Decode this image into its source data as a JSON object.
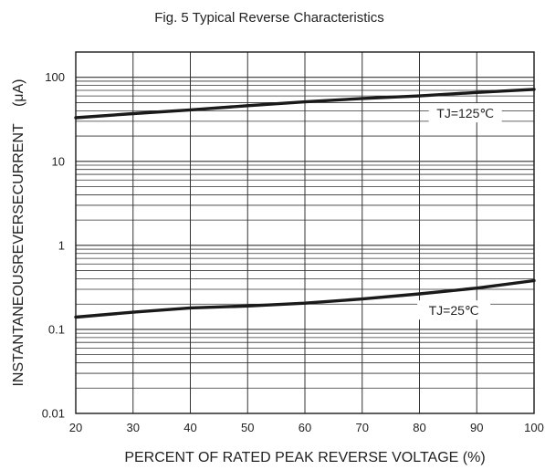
{
  "chart_data": {
    "type": "line",
    "title": "Fig. 5 Typical Reverse Characteristics",
    "xlabel": "PERCENT OF RATED PEAK REVERSE VOLTAGE (%)",
    "ylabel": "INSTANTANEOUSREVERSECURRENT",
    "ylabel_unit": "(μA)",
    "x_ticks": [
      "20",
      "30",
      "40",
      "50",
      "60",
      "70",
      "80",
      "90",
      "100"
    ],
    "y_ticks": [
      "0.01",
      "0.1",
      "1",
      "10",
      "100"
    ],
    "xlim": [
      20,
      100
    ],
    "ylim": [
      0.01,
      200
    ],
    "yscale": "log",
    "grid": true,
    "series": [
      {
        "name": "TJ=125℃",
        "x": [
          20,
          30,
          40,
          50,
          60,
          70,
          80,
          90,
          100
        ],
        "y": [
          33,
          37,
          41,
          46,
          51,
          56,
          60,
          66,
          72
        ]
      },
      {
        "name": "TJ=25℃",
        "x": [
          20,
          30,
          40,
          50,
          60,
          70,
          80,
          90,
          100
        ],
        "y": [
          0.14,
          0.16,
          0.18,
          0.19,
          0.205,
          0.23,
          0.265,
          0.31,
          0.38
        ]
      }
    ],
    "annotations": [
      {
        "text": "TJ=125℃",
        "series": 0,
        "x": 88
      },
      {
        "text": "TJ=25℃",
        "series": 1,
        "x": 86
      }
    ],
    "colors": {
      "line": "#1a1a1a",
      "grid": "#333333",
      "background": "#ffffff"
    }
  }
}
